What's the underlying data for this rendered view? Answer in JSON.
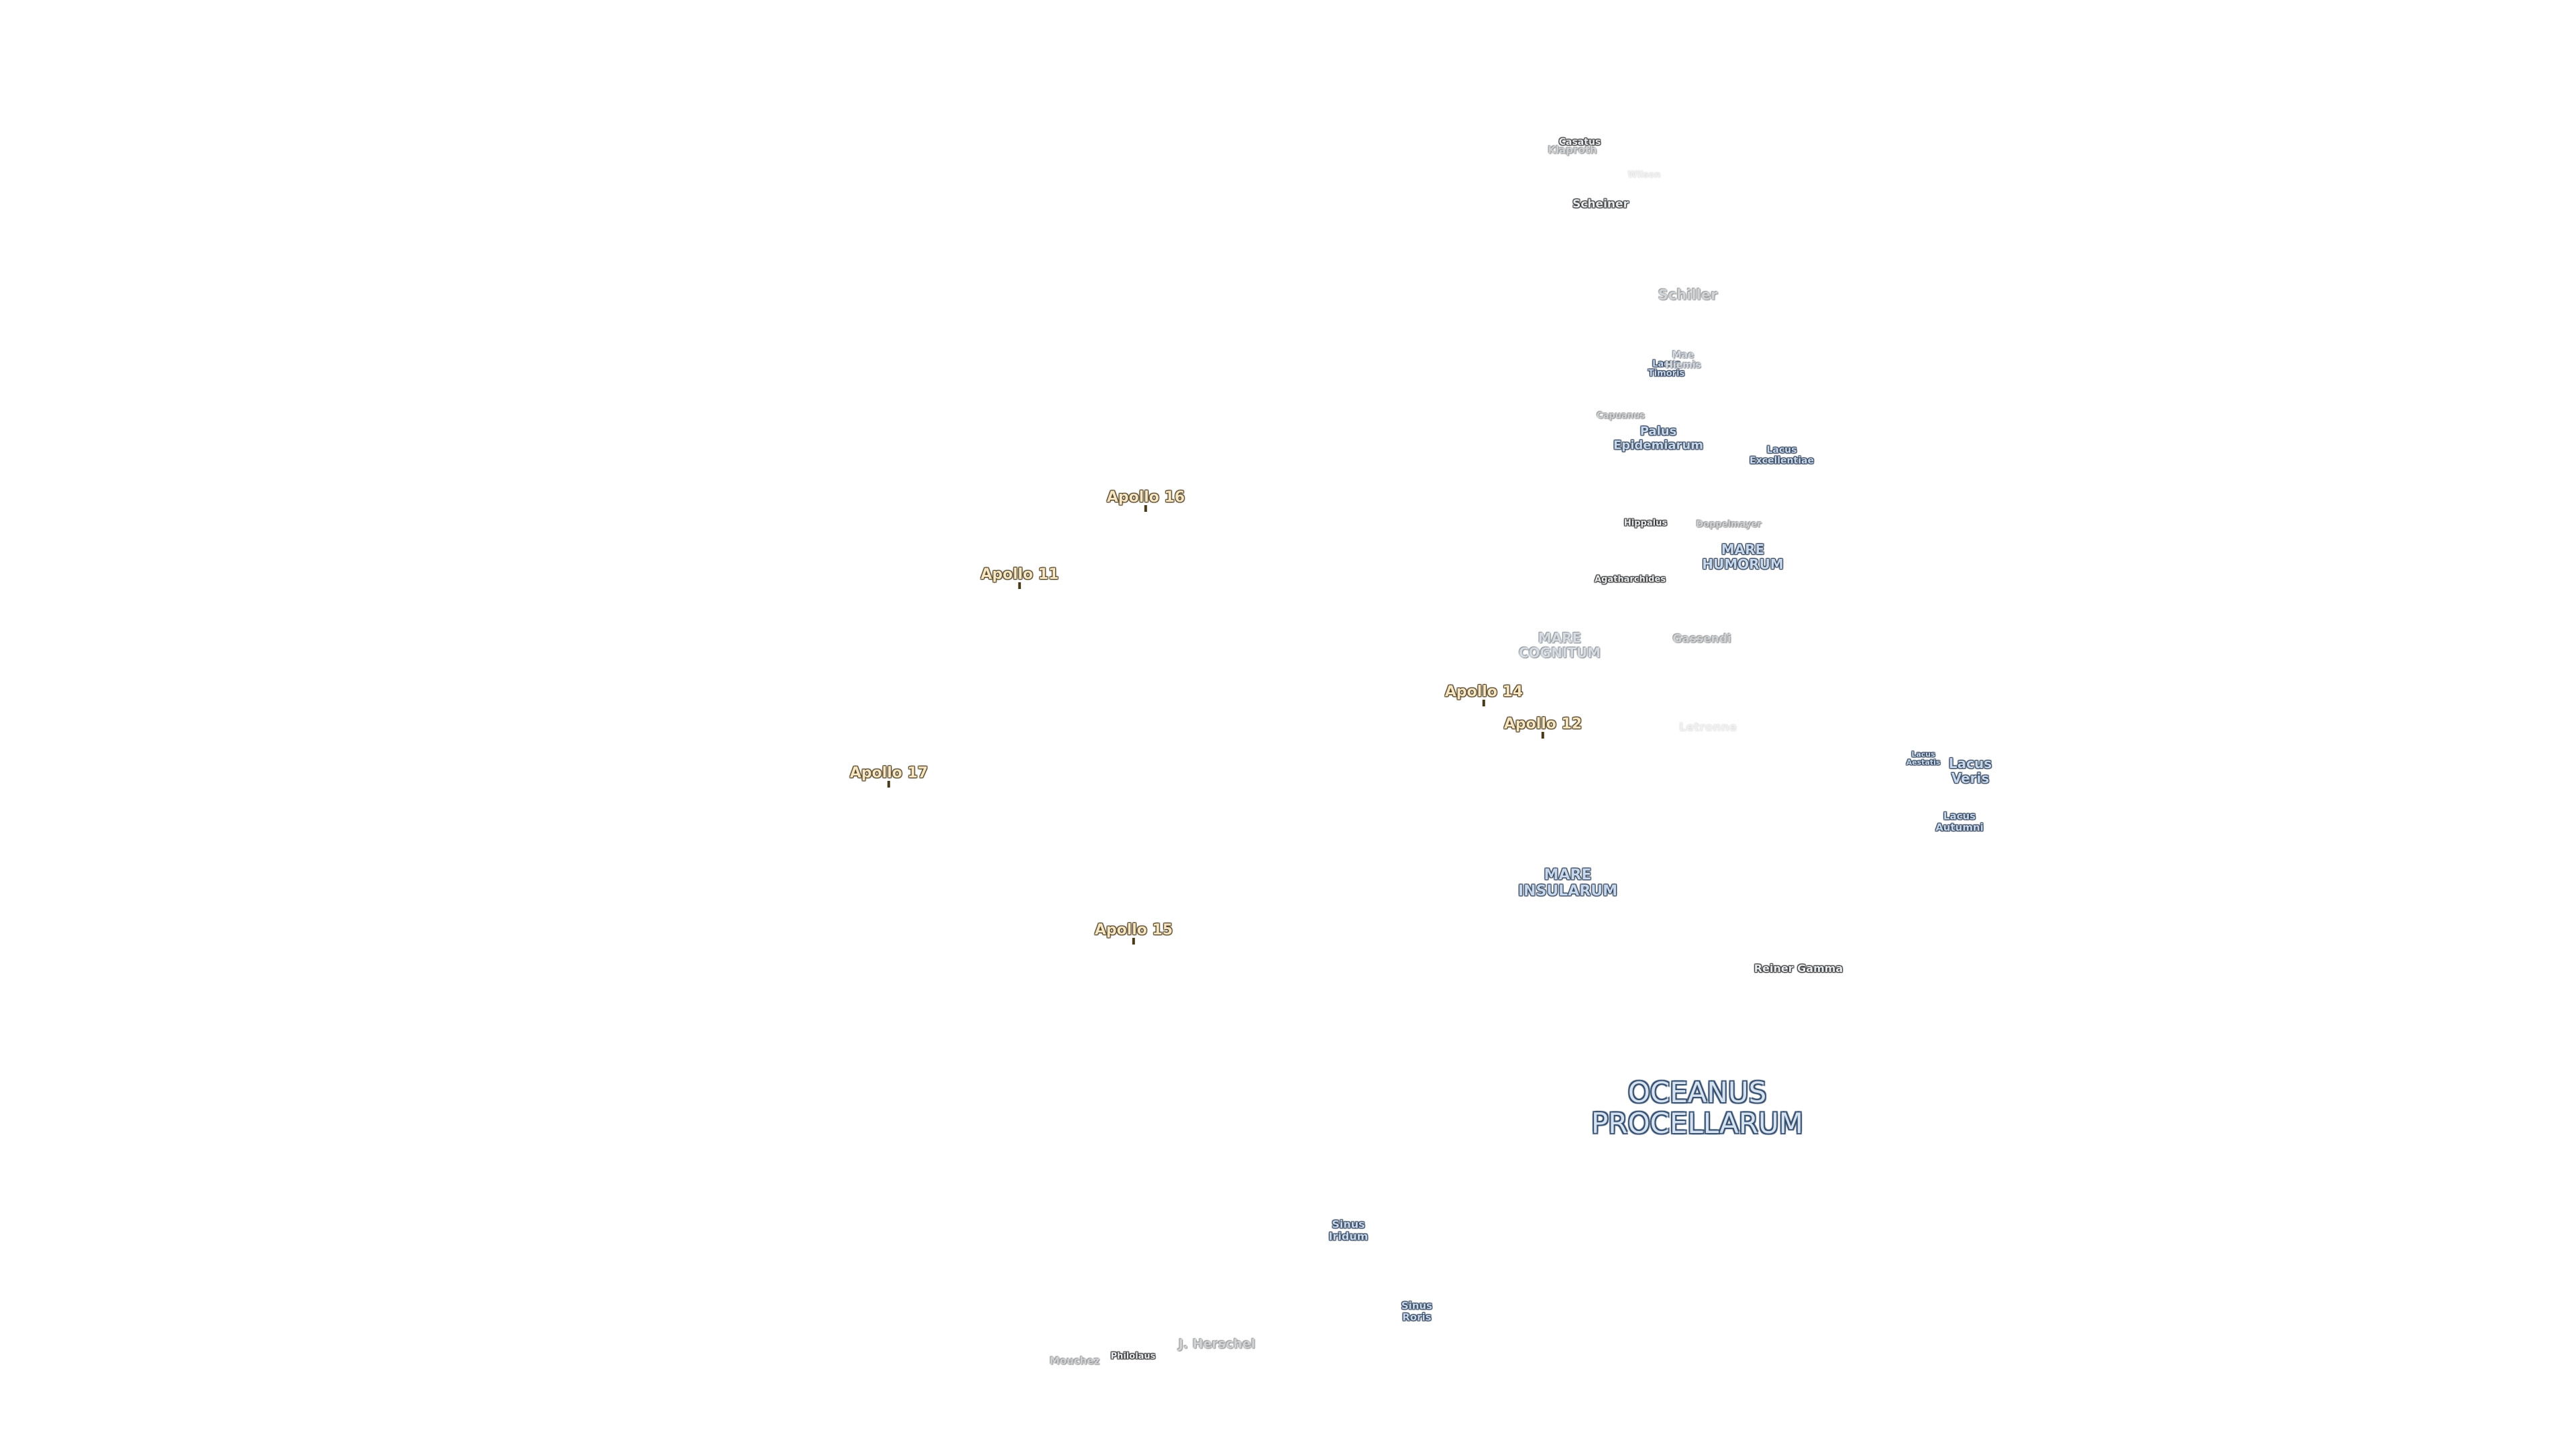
{
  "map": {
    "apollo_sites": [
      {
        "label": "Apollo 16"
      },
      {
        "label": "Apollo 11"
      },
      {
        "label": "Apollo 14"
      },
      {
        "label": "Apollo 12"
      },
      {
        "label": "Apollo 17"
      },
      {
        "label": "Apollo 15"
      }
    ],
    "oceanus": {
      "label": "OCEANUS\nPROCELLARUM"
    },
    "maria": [
      {
        "label": "MARE\nHUMORUM"
      },
      {
        "label": "MARE\nCOGNITUM"
      },
      {
        "label": "MARE\nINSULARUM"
      }
    ],
    "lacus": [
      {
        "label": "Palus\nEpidemiarum"
      },
      {
        "label": "Lacus\nExcellentiae"
      },
      {
        "label": "Lacus\nVeris"
      },
      {
        "label": "Lacus\nAutumni"
      },
      {
        "label": "Lacus\nAestatis"
      },
      {
        "label": "Lacus\nTimoris"
      },
      {
        "label": "Mae\nHiemis"
      },
      {
        "label": "Sinus\nIridum"
      },
      {
        "label": "Sinus\nRoris"
      }
    ],
    "craters": [
      {
        "label": "Casatus"
      },
      {
        "label": "Klaproth"
      },
      {
        "label": "Wilson"
      },
      {
        "label": "Scheiner"
      },
      {
        "label": "Schiller"
      },
      {
        "label": "Capuanus"
      },
      {
        "label": "Hippalus"
      },
      {
        "label": "Doppelmayer"
      },
      {
        "label": "Agatharchides"
      },
      {
        "label": "Gassendi"
      },
      {
        "label": "Letronne"
      },
      {
        "label": "Reiner Gamma"
      },
      {
        "label": "J. Herschel"
      },
      {
        "label": "Mouchez"
      },
      {
        "label": "Philolaus"
      }
    ]
  }
}
